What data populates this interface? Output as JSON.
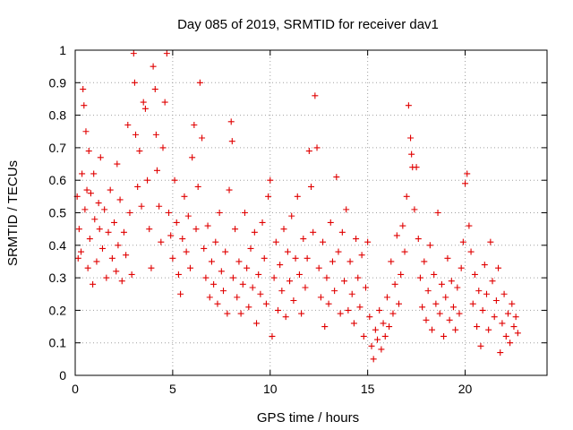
{
  "chart_data": {
    "type": "scatter",
    "title": "Day 085 of 2019, SRMTID for receiver dav1",
    "xlabel": "GPS time / hours",
    "ylabel": "SRMTID / TECUs",
    "xlim": [
      0,
      24.2
    ],
    "ylim": [
      0,
      1
    ],
    "x_ticks": [
      "0",
      "5",
      "10",
      "15",
      "20"
    ],
    "y_ticks": [
      "0",
      "0.1",
      "0.2",
      "0.3",
      "0.4",
      "0.5",
      "0.6",
      "0.7",
      "0.8",
      "0.9",
      "1"
    ],
    "grid": true,
    "marker": "+",
    "series": [
      {
        "name": "SRMTID",
        "color": "#e00000",
        "points": [
          [
            0.1,
            0.55
          ],
          [
            0.15,
            0.36
          ],
          [
            0.2,
            0.45
          ],
          [
            0.3,
            0.38
          ],
          [
            0.35,
            0.62
          ],
          [
            0.4,
            0.88
          ],
          [
            0.45,
            0.83
          ],
          [
            0.5,
            0.51
          ],
          [
            0.55,
            0.75
          ],
          [
            0.6,
            0.57
          ],
          [
            0.65,
            0.33
          ],
          [
            0.7,
            0.69
          ],
          [
            0.75,
            0.42
          ],
          [
            0.8,
            0.56
          ],
          [
            0.9,
            0.28
          ],
          [
            0.95,
            0.62
          ],
          [
            1.0,
            0.48
          ],
          [
            1.1,
            0.35
          ],
          [
            1.2,
            0.53
          ],
          [
            1.25,
            0.45
          ],
          [
            1.3,
            0.67
          ],
          [
            1.4,
            0.39
          ],
          [
            1.5,
            0.51
          ],
          [
            1.6,
            0.3
          ],
          [
            1.7,
            0.44
          ],
          [
            1.8,
            0.57
          ],
          [
            1.9,
            0.36
          ],
          [
            2.0,
            0.47
          ],
          [
            2.1,
            0.32
          ],
          [
            2.15,
            0.65
          ],
          [
            2.2,
            0.4
          ],
          [
            2.3,
            0.54
          ],
          [
            2.4,
            0.29
          ],
          [
            2.5,
            0.44
          ],
          [
            2.6,
            0.37
          ],
          [
            2.7,
            0.77
          ],
          [
            2.8,
            0.5
          ],
          [
            2.9,
            0.31
          ],
          [
            3.0,
            0.99
          ],
          [
            3.05,
            0.9
          ],
          [
            3.1,
            0.74
          ],
          [
            3.2,
            0.58
          ],
          [
            3.3,
            0.69
          ],
          [
            3.4,
            0.52
          ],
          [
            3.5,
            0.84
          ],
          [
            3.6,
            0.82
          ],
          [
            3.7,
            0.6
          ],
          [
            3.8,
            0.45
          ],
          [
            3.9,
            0.33
          ],
          [
            4.0,
            0.95
          ],
          [
            4.1,
            0.88
          ],
          [
            4.15,
            0.74
          ],
          [
            4.2,
            0.63
          ],
          [
            4.3,
            0.52
          ],
          [
            4.4,
            0.41
          ],
          [
            4.5,
            0.7
          ],
          [
            4.6,
            0.84
          ],
          [
            4.7,
            0.99
          ],
          [
            4.8,
            0.5
          ],
          [
            4.9,
            0.43
          ],
          [
            5.0,
            0.36
          ],
          [
            5.1,
            0.6
          ],
          [
            5.2,
            0.47
          ],
          [
            5.3,
            0.31
          ],
          [
            5.4,
            0.25
          ],
          [
            5.5,
            0.42
          ],
          [
            5.6,
            0.55
          ],
          [
            5.7,
            0.38
          ],
          [
            5.8,
            0.49
          ],
          [
            5.9,
            0.33
          ],
          [
            6.0,
            0.67
          ],
          [
            6.1,
            0.77
          ],
          [
            6.2,
            0.45
          ],
          [
            6.3,
            0.58
          ],
          [
            6.4,
            0.9
          ],
          [
            6.5,
            0.73
          ],
          [
            6.6,
            0.39
          ],
          [
            6.7,
            0.3
          ],
          [
            6.8,
            0.46
          ],
          [
            6.9,
            0.24
          ],
          [
            7.0,
            0.35
          ],
          [
            7.1,
            0.28
          ],
          [
            7.2,
            0.41
          ],
          [
            7.3,
            0.22
          ],
          [
            7.4,
            0.5
          ],
          [
            7.5,
            0.32
          ],
          [
            7.6,
            0.26
          ],
          [
            7.7,
            0.38
          ],
          [
            7.8,
            0.19
          ],
          [
            7.9,
            0.57
          ],
          [
            8.0,
            0.78
          ],
          [
            8.05,
            0.72
          ],
          [
            8.1,
            0.3
          ],
          [
            8.2,
            0.45
          ],
          [
            8.3,
            0.24
          ],
          [
            8.4,
            0.35
          ],
          [
            8.5,
            0.19
          ],
          [
            8.6,
            0.28
          ],
          [
            8.7,
            0.5
          ],
          [
            8.8,
            0.33
          ],
          [
            8.9,
            0.21
          ],
          [
            9.0,
            0.39
          ],
          [
            9.1,
            0.27
          ],
          [
            9.2,
            0.44
          ],
          [
            9.3,
            0.16
          ],
          [
            9.4,
            0.31
          ],
          [
            9.5,
            0.25
          ],
          [
            9.6,
            0.47
          ],
          [
            9.7,
            0.36
          ],
          [
            9.8,
            0.22
          ],
          [
            9.9,
            0.55
          ],
          [
            10.0,
            0.6
          ],
          [
            10.1,
            0.12
          ],
          [
            10.2,
            0.3
          ],
          [
            10.3,
            0.41
          ],
          [
            10.4,
            0.2
          ],
          [
            10.5,
            0.34
          ],
          [
            10.6,
            0.26
          ],
          [
            10.7,
            0.45
          ],
          [
            10.8,
            0.18
          ],
          [
            10.9,
            0.38
          ],
          [
            11.0,
            0.29
          ],
          [
            11.1,
            0.49
          ],
          [
            11.2,
            0.23
          ],
          [
            11.3,
            0.36
          ],
          [
            11.4,
            0.55
          ],
          [
            11.5,
            0.31
          ],
          [
            11.6,
            0.19
          ],
          [
            11.7,
            0.42
          ],
          [
            11.8,
            0.27
          ],
          [
            11.9,
            0.36
          ],
          [
            12.0,
            0.69
          ],
          [
            12.1,
            0.58
          ],
          [
            12.2,
            0.44
          ],
          [
            12.3,
            0.86
          ],
          [
            12.4,
            0.7
          ],
          [
            12.5,
            0.33
          ],
          [
            12.6,
            0.24
          ],
          [
            12.7,
            0.41
          ],
          [
            12.8,
            0.15
          ],
          [
            12.9,
            0.3
          ],
          [
            13.0,
            0.22
          ],
          [
            13.1,
            0.47
          ],
          [
            13.2,
            0.35
          ],
          [
            13.3,
            0.26
          ],
          [
            13.4,
            0.61
          ],
          [
            13.5,
            0.38
          ],
          [
            13.6,
            0.19
          ],
          [
            13.7,
            0.44
          ],
          [
            13.8,
            0.29
          ],
          [
            13.9,
            0.51
          ],
          [
            14.0,
            0.2
          ],
          [
            14.1,
            0.35
          ],
          [
            14.2,
            0.25
          ],
          [
            14.3,
            0.16
          ],
          [
            14.4,
            0.42
          ],
          [
            14.5,
            0.3
          ],
          [
            14.6,
            0.21
          ],
          [
            14.7,
            0.37
          ],
          [
            14.8,
            0.12
          ],
          [
            14.9,
            0.27
          ],
          [
            15.0,
            0.41
          ],
          [
            15.1,
            0.18
          ],
          [
            15.2,
            0.09
          ],
          [
            15.3,
            0.05
          ],
          [
            15.4,
            0.14
          ],
          [
            15.5,
            0.11
          ],
          [
            15.6,
            0.2
          ],
          [
            15.7,
            0.08
          ],
          [
            15.8,
            0.16
          ],
          [
            15.9,
            0.12
          ],
          [
            16.0,
            0.24
          ],
          [
            16.1,
            0.15
          ],
          [
            16.2,
            0.35
          ],
          [
            16.3,
            0.19
          ],
          [
            16.4,
            0.28
          ],
          [
            16.5,
            0.43
          ],
          [
            16.6,
            0.22
          ],
          [
            16.7,
            0.31
          ],
          [
            16.8,
            0.46
          ],
          [
            16.9,
            0.38
          ],
          [
            17.0,
            0.55
          ],
          [
            17.1,
            0.83
          ],
          [
            17.2,
            0.73
          ],
          [
            17.25,
            0.68
          ],
          [
            17.3,
            0.64
          ],
          [
            17.4,
            0.51
          ],
          [
            17.5,
            0.64
          ],
          [
            17.6,
            0.42
          ],
          [
            17.7,
            0.3
          ],
          [
            17.8,
            0.21
          ],
          [
            17.9,
            0.35
          ],
          [
            18.0,
            0.17
          ],
          [
            18.1,
            0.26
          ],
          [
            18.2,
            0.4
          ],
          [
            18.3,
            0.14
          ],
          [
            18.4,
            0.31
          ],
          [
            18.5,
            0.22
          ],
          [
            18.6,
            0.5
          ],
          [
            18.7,
            0.19
          ],
          [
            18.8,
            0.28
          ],
          [
            18.9,
            0.12
          ],
          [
            19.0,
            0.24
          ],
          [
            19.1,
            0.36
          ],
          [
            19.2,
            0.17
          ],
          [
            19.3,
            0.29
          ],
          [
            19.4,
            0.21
          ],
          [
            19.5,
            0.14
          ],
          [
            19.6,
            0.27
          ],
          [
            19.7,
            0.19
          ],
          [
            19.8,
            0.33
          ],
          [
            19.9,
            0.41
          ],
          [
            20.0,
            0.59
          ],
          [
            20.1,
            0.62
          ],
          [
            20.2,
            0.46
          ],
          [
            20.3,
            0.38
          ],
          [
            20.4,
            0.22
          ],
          [
            20.5,
            0.31
          ],
          [
            20.6,
            0.15
          ],
          [
            20.7,
            0.26
          ],
          [
            20.8,
            0.09
          ],
          [
            20.9,
            0.2
          ],
          [
            21.0,
            0.34
          ],
          [
            21.1,
            0.25
          ],
          [
            21.2,
            0.14
          ],
          [
            21.3,
            0.41
          ],
          [
            21.4,
            0.29
          ],
          [
            21.5,
            0.18
          ],
          [
            21.6,
            0.23
          ],
          [
            21.7,
            0.33
          ],
          [
            21.8,
            0.07
          ],
          [
            21.9,
            0.16
          ],
          [
            22.0,
            0.25
          ],
          [
            22.1,
            0.12
          ],
          [
            22.2,
            0.19
          ],
          [
            22.3,
            0.1
          ],
          [
            22.4,
            0.22
          ],
          [
            22.5,
            0.15
          ],
          [
            22.6,
            0.18
          ],
          [
            22.7,
            0.13
          ]
        ]
      }
    ]
  }
}
